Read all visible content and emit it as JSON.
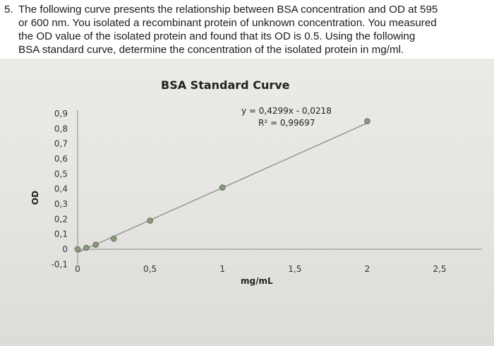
{
  "question": {
    "number": "5.",
    "lines": [
      "The following curve presents the relationship between BSA concentration and OD at 595",
      "or 600 nm. You isolated a recombinant protein of unknown concentration. You measured",
      "the OD value of the isolated protein and found that its OD is 0.5. Using the following",
      "BSA standard curve, determine the concentration of the isolated protein in mg/ml."
    ]
  },
  "chart_data": {
    "type": "scatter",
    "title": "BSA Standard Curve",
    "xlabel": "mg/mL",
    "ylabel": "OD",
    "x_ticks": [
      "0",
      "0,5",
      "1",
      "1,5",
      "2",
      "2,5"
    ],
    "y_ticks": [
      "0,9",
      "0,8",
      "0,7",
      "0,6",
      "0,5",
      "0,4",
      "0,3",
      "0,2",
      "0,1",
      "0",
      "-0,1"
    ],
    "xlim": [
      0,
      2.5
    ],
    "ylim": [
      -0.1,
      0.9
    ],
    "series": [
      {
        "x": [
          0,
          0.06,
          0.125,
          0.25,
          0.5,
          1.0,
          2.0
        ],
        "y": [
          0.0,
          0.01,
          0.03,
          0.07,
          0.19,
          0.41,
          0.85
        ]
      }
    ],
    "trendline": {
      "slope": 0.4299,
      "intercept": -0.0218,
      "x_range": [
        0,
        2.0
      ]
    },
    "annotations": [
      "y = 0,4299x - 0,0218",
      "R² = 0,99697"
    ],
    "grid": false,
    "colors": {
      "point": "#8a9a7e",
      "line": "#888888"
    }
  }
}
